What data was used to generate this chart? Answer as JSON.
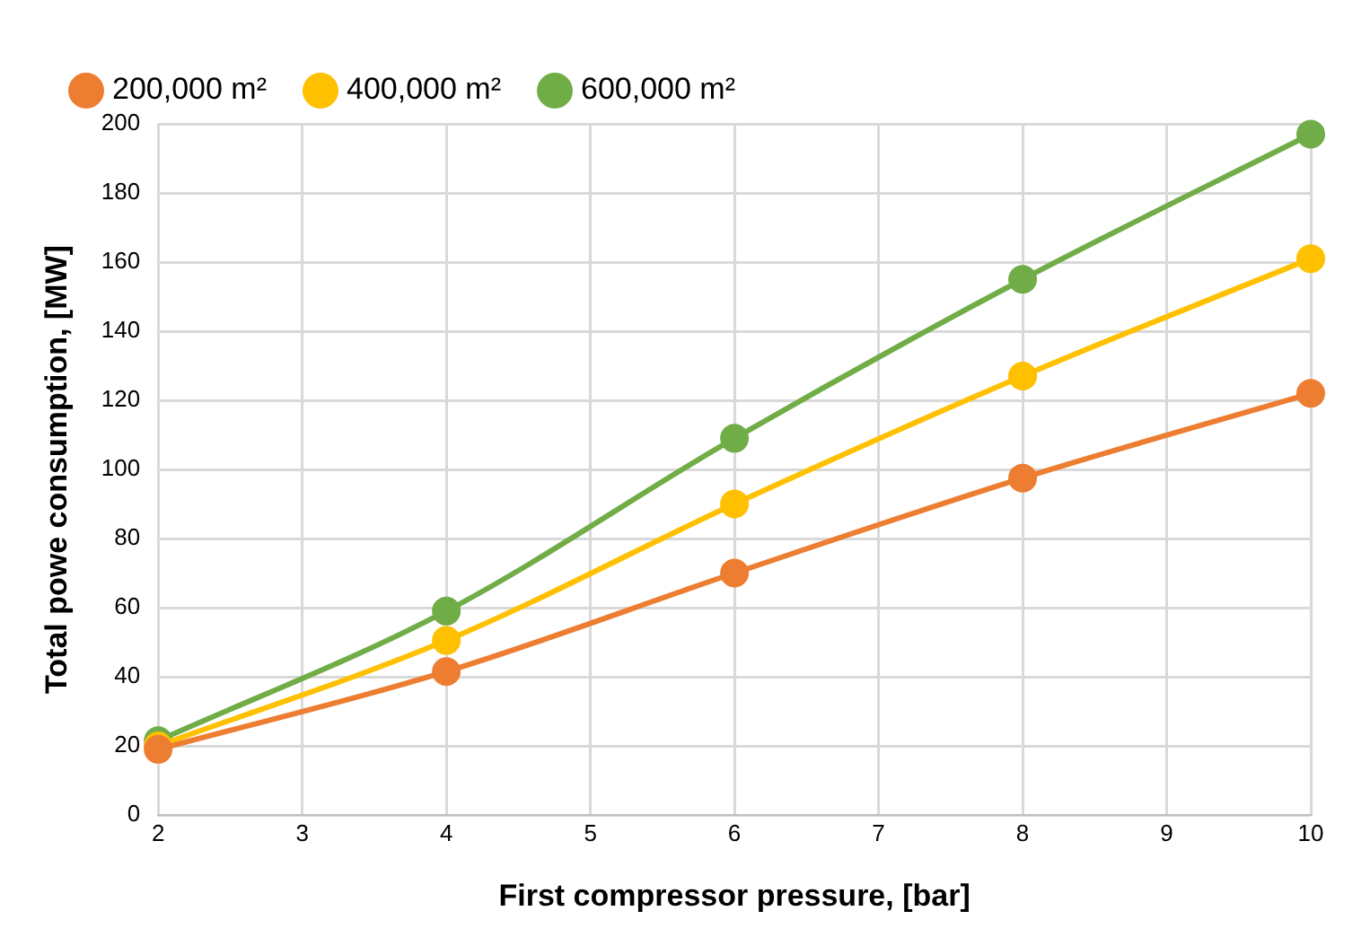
{
  "chart_data": {
    "type": "line",
    "xlabel": "First compressor pressure, [bar]",
    "ylabel": "Total powe consumption, [MW]",
    "x": [
      2,
      4,
      6,
      8,
      10
    ],
    "series": [
      {
        "name": "200,000 m²",
        "color": "#ed7d31",
        "values": [
          19,
          41.5,
          70,
          97.5,
          122
        ]
      },
      {
        "name": "400,000 m²",
        "color": "#ffc000",
        "values": [
          20,
          50.5,
          90,
          127,
          161
        ]
      },
      {
        "name": "600,000 m²",
        "color": "#70ad47",
        "values": [
          21.5,
          59,
          109,
          155,
          197
        ]
      }
    ],
    "xlim": [
      2,
      10
    ],
    "xticks": [
      2,
      3,
      4,
      5,
      6,
      7,
      8,
      9,
      10
    ],
    "ylim": [
      0,
      200
    ],
    "yticks": [
      0,
      20,
      40,
      60,
      80,
      100,
      120,
      140,
      160,
      180,
      200
    ],
    "grid": true,
    "legend": "top",
    "marker": "circle",
    "line_style": "solid"
  }
}
